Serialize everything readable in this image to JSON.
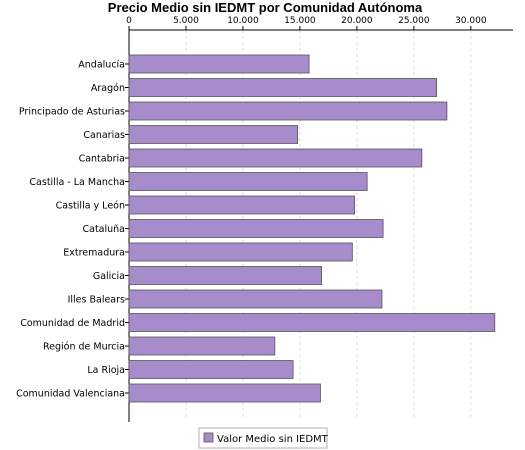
{
  "chart_data": {
    "type": "bar",
    "orientation": "horizontal",
    "title": "Precio Medio sin IEDMT por Comunidad Autónoma",
    "xlabel": "",
    "ylabel": "",
    "categories": [
      "Andalucía",
      "Aragón",
      "Principado de Asturias",
      "Canarias",
      "Cantabria",
      "Castilla - La Mancha",
      "Castilla y León",
      "Cataluña",
      "Extremadura",
      "Galicia",
      "Illes Balears",
      "Comunidad de Madrid",
      "Región de Murcia",
      "La Rioja",
      "Comunidad Valenciana"
    ],
    "series": [
      {
        "name": "Valor Medio sin IEDMT",
        "color": "#a68ccb",
        "values": [
          15800,
          27000,
          27900,
          14800,
          25700,
          20900,
          19800,
          22300,
          19600,
          16900,
          22200,
          32100,
          12800,
          14400,
          16800
        ]
      }
    ],
    "xlim": [
      0,
      33700
    ],
    "xticks": [
      0,
      5000,
      10000,
      15000,
      20000,
      25000,
      30000
    ],
    "xtick_labels": [
      "0",
      "5.000",
      "10.000",
      "15.000",
      "20.000",
      "25.000",
      "30.000"
    ],
    "x_axis_position": "top",
    "grid": {
      "vertical": true,
      "style": "dashed",
      "color": "#dcdcdc"
    },
    "legend": {
      "position": "bottom",
      "entries": [
        "Valor Medio sin IEDMT"
      ]
    }
  }
}
